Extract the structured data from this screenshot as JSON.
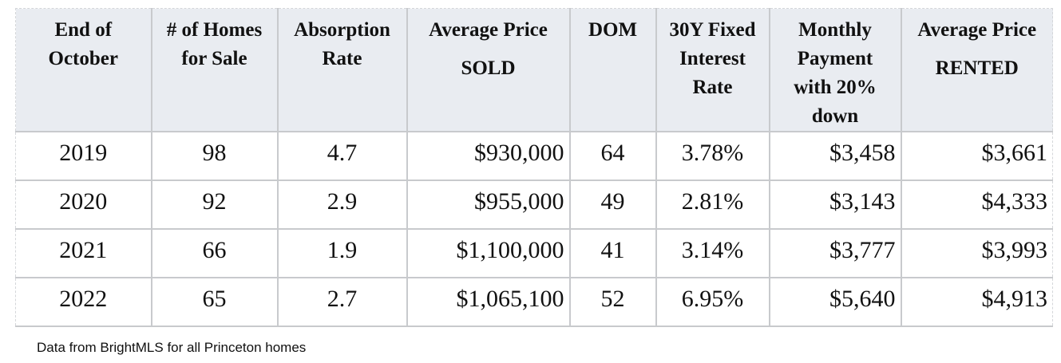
{
  "table": {
    "headers": [
      [
        "End of",
        "October"
      ],
      [
        "# of Homes",
        "for Sale"
      ],
      [
        "Absorption",
        "Rate"
      ],
      [
        "Average Price",
        "",
        "SOLD"
      ],
      [
        "DOM"
      ],
      [
        "30Y Fixed",
        "Interest",
        "Rate"
      ],
      [
        "Monthly",
        "Payment",
        "with 20%",
        "down"
      ],
      [
        "Average Price",
        "",
        "RENTED"
      ]
    ],
    "rows": [
      [
        "2019",
        "98",
        "4.7",
        "$930,000",
        "64",
        "3.78%",
        "$3,458",
        "$3,661"
      ],
      [
        "2020",
        "92",
        "2.9",
        "$955,000",
        "49",
        "2.81%",
        "$3,143",
        "$4,333"
      ],
      [
        "2021",
        "66",
        "1.9",
        "$1,100,000",
        "41",
        "3.14%",
        "$3,777",
        "$3,993"
      ],
      [
        "2022",
        "65",
        "2.7",
        "$1,065,100",
        "52",
        "6.95%",
        "$5,640",
        "$4,913"
      ]
    ]
  },
  "footnote": "Data from BrightMLS for all Princeton homes"
}
